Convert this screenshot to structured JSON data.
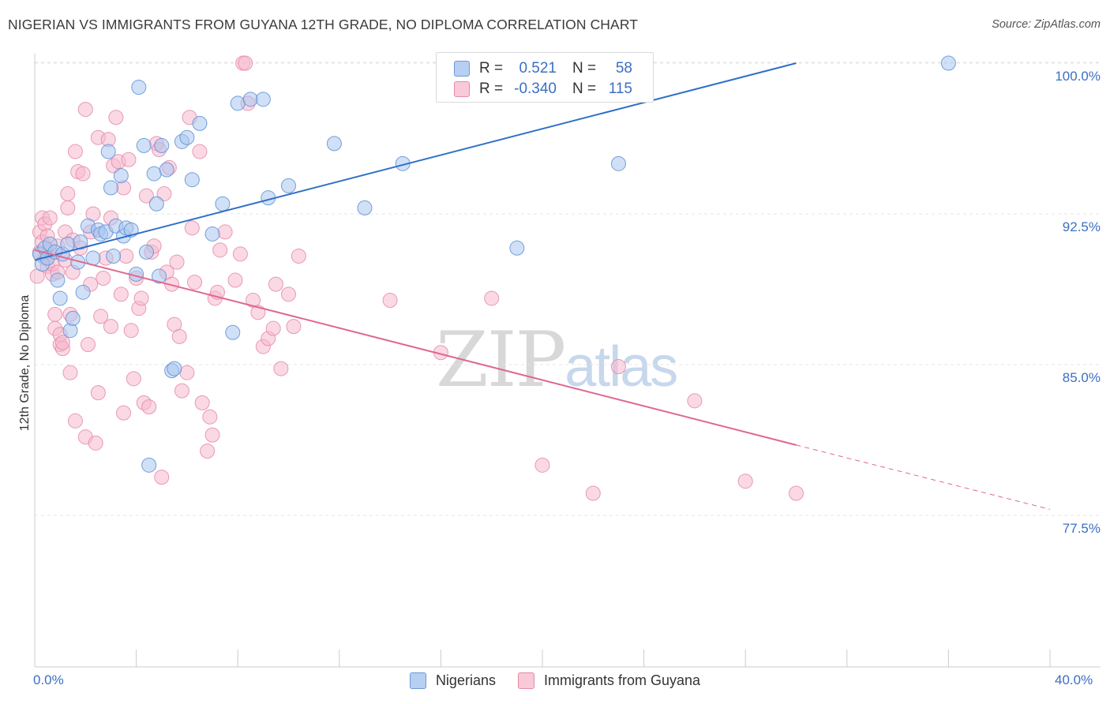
{
  "header": {
    "title": "NIGERIAN VS IMMIGRANTS FROM GUYANA 12TH GRADE, NO DIPLOMA CORRELATION CHART",
    "source": "Source: ZipAtlas.com"
  },
  "legend": {
    "rows": [
      {
        "r_label": "R =",
        "r_value": "0.521",
        "n_label": "N =",
        "n_value": "58"
      },
      {
        "r_label": "R =",
        "r_value": "-0.340",
        "n_label": "N =",
        "n_value": "115"
      }
    ]
  },
  "bottom_legend": {
    "series_a": "Nigerians",
    "series_b": "Immigrants from Guyana"
  },
  "watermark": {
    "part1": "ZIP",
    "part2": "atlas"
  },
  "colors": {
    "nigerians_fill": "#a9c6ee",
    "nigerians_stroke": "#5f8fd6",
    "nigerians_line": "#2f6fc8",
    "guyana_fill": "#f6b9cd",
    "guyana_stroke": "#e58aa8",
    "guyana_line": "#e0678f",
    "tick_text": "#3a6fc4",
    "grid": "#e4e4e4"
  },
  "chart_data": {
    "type": "scatter",
    "title": "NIGERIAN VS IMMIGRANTS FROM GUYANA 12TH GRADE, NO DIPLOMA CORRELATION CHART",
    "xlabel": "",
    "ylabel": "12th Grade, No Diploma",
    "xlim": [
      0,
      40
    ],
    "ylim": [
      70.8,
      101.5
    ],
    "x_tick_labels": [
      "0.0%",
      "40.0%"
    ],
    "y_ticks": [
      77.5,
      85.0,
      92.5,
      100.0
    ],
    "y_tick_labels": [
      "77.5%",
      "85.0%",
      "92.5%",
      "100.0%"
    ],
    "grid": true,
    "legend_position": "top-center",
    "series": [
      {
        "name": "Nigerians",
        "r": 0.521,
        "n": 58,
        "trend": {
          "x": [
            0.0,
            30.0
          ],
          "y": [
            90.2,
            100.0
          ]
        },
        "points": [
          [
            0.2,
            90.5
          ],
          [
            0.3,
            90.0
          ],
          [
            0.4,
            90.8
          ],
          [
            0.5,
            90.3
          ],
          [
            0.6,
            91.0
          ],
          [
            0.8,
            90.6
          ],
          [
            0.9,
            89.2
          ],
          [
            1.0,
            88.3
          ],
          [
            1.1,
            90.5
          ],
          [
            1.3,
            91.0
          ],
          [
            1.4,
            86.7
          ],
          [
            1.5,
            87.3
          ],
          [
            1.7,
            90.1
          ],
          [
            1.8,
            91.1
          ],
          [
            1.9,
            88.6
          ],
          [
            2.1,
            91.9
          ],
          [
            2.3,
            90.3
          ],
          [
            2.5,
            91.7
          ],
          [
            2.6,
            91.5
          ],
          [
            2.8,
            91.6
          ],
          [
            2.9,
            95.6
          ],
          [
            3.0,
            93.8
          ],
          [
            3.1,
            90.4
          ],
          [
            3.2,
            91.9
          ],
          [
            3.4,
            94.4
          ],
          [
            3.5,
            91.4
          ],
          [
            3.6,
            91.8
          ],
          [
            3.8,
            91.7
          ],
          [
            4.0,
            89.5
          ],
          [
            4.1,
            98.8
          ],
          [
            4.3,
            95.9
          ],
          [
            4.4,
            90.6
          ],
          [
            4.5,
            80.0
          ],
          [
            4.7,
            94.5
          ],
          [
            4.8,
            93.0
          ],
          [
            4.9,
            89.4
          ],
          [
            5.0,
            95.9
          ],
          [
            5.2,
            94.7
          ],
          [
            5.4,
            84.7
          ],
          [
            5.5,
            84.8
          ],
          [
            5.8,
            96.1
          ],
          [
            6.0,
            96.3
          ],
          [
            6.2,
            94.2
          ],
          [
            6.5,
            97.0
          ],
          [
            7.0,
            91.5
          ],
          [
            7.4,
            93.0
          ],
          [
            7.8,
            86.6
          ],
          [
            8.0,
            98.0
          ],
          [
            8.5,
            98.2
          ],
          [
            9.0,
            98.2
          ],
          [
            9.2,
            93.3
          ],
          [
            10.0,
            93.9
          ],
          [
            11.8,
            96.0
          ],
          [
            13.0,
            92.8
          ],
          [
            14.5,
            95.0
          ],
          [
            19.0,
            90.8
          ],
          [
            23.0,
            95.0
          ],
          [
            36.0,
            100.0
          ]
        ]
      },
      {
        "name": "Immigrants from Guyana",
        "r": -0.34,
        "n": 115,
        "trend": {
          "x": [
            0.0,
            30.0,
            40.0
          ],
          "y": [
            90.7,
            81.0,
            77.8
          ]
        },
        "trend_dashed_from_x": 30.0,
        "points": [
          [
            0.1,
            89.4
          ],
          [
            0.2,
            90.6
          ],
          [
            0.2,
            91.6
          ],
          [
            0.3,
            92.3
          ],
          [
            0.3,
            91.1
          ],
          [
            0.4,
            90.3
          ],
          [
            0.4,
            92.0
          ],
          [
            0.5,
            89.9
          ],
          [
            0.5,
            91.4
          ],
          [
            0.6,
            90.7
          ],
          [
            0.6,
            92.3
          ],
          [
            0.7,
            89.5
          ],
          [
            0.7,
            90.0
          ],
          [
            0.8,
            86.8
          ],
          [
            0.8,
            87.5
          ],
          [
            0.9,
            89.6
          ],
          [
            0.9,
            90.9
          ],
          [
            1.0,
            86.0
          ],
          [
            1.0,
            86.5
          ],
          [
            1.1,
            85.8
          ],
          [
            1.1,
            86.1
          ],
          [
            1.2,
            90.2
          ],
          [
            1.2,
            91.6
          ],
          [
            1.3,
            92.8
          ],
          [
            1.3,
            93.5
          ],
          [
            1.4,
            84.6
          ],
          [
            1.4,
            87.5
          ],
          [
            1.5,
            89.6
          ],
          [
            1.5,
            91.2
          ],
          [
            1.6,
            82.2
          ],
          [
            1.6,
            95.6
          ],
          [
            1.7,
            94.6
          ],
          [
            1.8,
            90.8
          ],
          [
            1.9,
            94.5
          ],
          [
            2.0,
            97.7
          ],
          [
            2.0,
            81.4
          ],
          [
            2.1,
            86.0
          ],
          [
            2.2,
            89.0
          ],
          [
            2.2,
            91.6
          ],
          [
            2.3,
            92.5
          ],
          [
            2.4,
            81.1
          ],
          [
            2.5,
            96.3
          ],
          [
            2.5,
            83.6
          ],
          [
            2.6,
            87.4
          ],
          [
            2.7,
            89.3
          ],
          [
            2.8,
            90.3
          ],
          [
            2.9,
            96.2
          ],
          [
            3.0,
            92.3
          ],
          [
            3.0,
            86.9
          ],
          [
            3.1,
            94.9
          ],
          [
            3.2,
            97.3
          ],
          [
            3.3,
            95.1
          ],
          [
            3.4,
            88.5
          ],
          [
            3.5,
            82.6
          ],
          [
            3.5,
            93.8
          ],
          [
            3.6,
            90.4
          ],
          [
            3.7,
            95.2
          ],
          [
            3.8,
            86.7
          ],
          [
            3.9,
            84.3
          ],
          [
            4.0,
            89.3
          ],
          [
            4.1,
            87.8
          ],
          [
            4.2,
            88.3
          ],
          [
            4.3,
            83.1
          ],
          [
            4.4,
            93.4
          ],
          [
            4.5,
            82.9
          ],
          [
            4.6,
            90.6
          ],
          [
            4.7,
            90.9
          ],
          [
            4.8,
            96.0
          ],
          [
            4.9,
            95.7
          ],
          [
            5.0,
            79.4
          ],
          [
            5.1,
            93.5
          ],
          [
            5.2,
            89.6
          ],
          [
            5.3,
            94.8
          ],
          [
            5.4,
            89.0
          ],
          [
            5.5,
            87.0
          ],
          [
            5.6,
            90.1
          ],
          [
            5.7,
            86.4
          ],
          [
            5.8,
            83.7
          ],
          [
            6.0,
            84.6
          ],
          [
            6.1,
            97.3
          ],
          [
            6.2,
            91.8
          ],
          [
            6.3,
            89.1
          ],
          [
            6.5,
            95.6
          ],
          [
            6.6,
            83.1
          ],
          [
            6.8,
            80.7
          ],
          [
            6.9,
            82.4
          ],
          [
            7.0,
            81.5
          ],
          [
            7.1,
            88.3
          ],
          [
            7.2,
            88.6
          ],
          [
            7.3,
            90.7
          ],
          [
            7.5,
            91.6
          ],
          [
            7.9,
            89.2
          ],
          [
            8.1,
            90.5
          ],
          [
            8.2,
            100.0
          ],
          [
            8.3,
            100.0
          ],
          [
            8.4,
            98.0
          ],
          [
            8.6,
            88.2
          ],
          [
            8.8,
            87.6
          ],
          [
            9.0,
            85.9
          ],
          [
            9.2,
            86.3
          ],
          [
            9.4,
            86.8
          ],
          [
            9.5,
            89.0
          ],
          [
            9.7,
            84.8
          ],
          [
            10.0,
            88.5
          ],
          [
            10.2,
            86.9
          ],
          [
            10.4,
            90.4
          ],
          [
            14.0,
            88.2
          ],
          [
            16.0,
            85.6
          ],
          [
            18.0,
            88.3
          ],
          [
            20.0,
            80.0
          ],
          [
            22.0,
            78.6
          ],
          [
            23.0,
            84.9
          ],
          [
            26.0,
            83.2
          ],
          [
            28.0,
            79.2
          ],
          [
            30.0,
            78.6
          ]
        ]
      }
    ]
  }
}
